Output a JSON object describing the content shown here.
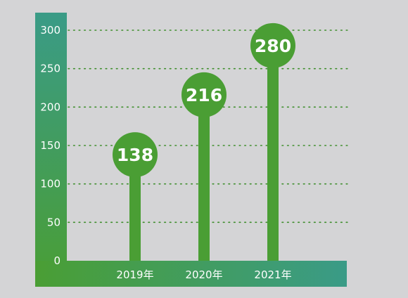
{
  "colors": {
    "background": "#d4d4d6",
    "bar": "#4a9e34",
    "gridline": "#3e8e2c",
    "axis_gradient_dark": "#4a9e34",
    "axis_gradient_teal": "#3a9b87",
    "label_text": "#ffffff"
  },
  "chart_data": {
    "type": "bar",
    "style": "lollipop",
    "categories": [
      "2019年",
      "2020年",
      "2021年"
    ],
    "values": [
      138,
      216,
      280
    ],
    "data_labels": [
      "138",
      "216",
      "280"
    ],
    "y_ticks": [
      "0",
      "50",
      "100",
      "150",
      "200",
      "250",
      "300"
    ],
    "ylim": [
      0,
      300
    ],
    "grid": true,
    "grid_style": "dotted",
    "legend": "none"
  }
}
